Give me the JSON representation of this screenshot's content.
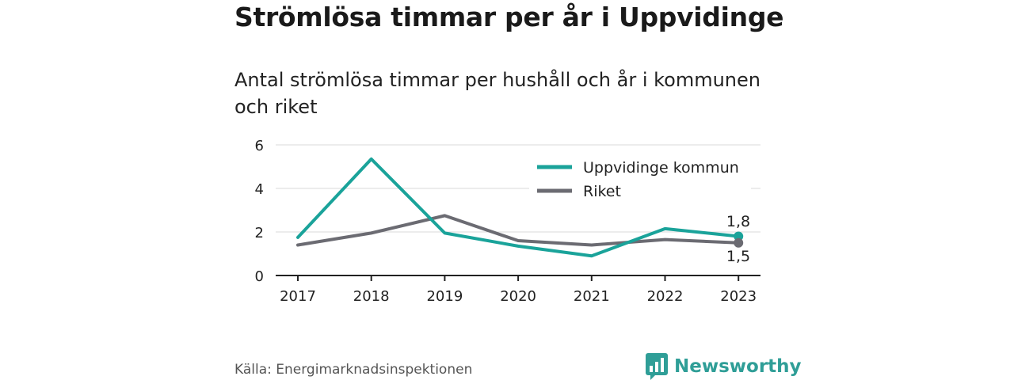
{
  "title": "Strömlösa timmar per år i Uppvidinge",
  "subtitle": "Antal strömlösa timmar per hushåll och år i kommunen och riket",
  "source": "Källa: Energimarknadsinspektionen",
  "brand": "Newsworthy",
  "colors": {
    "teal": "#1aa39a",
    "gray": "#6b6b72",
    "grid": "#d9d9d9",
    "axis": "#222222"
  },
  "chart_data": {
    "type": "line",
    "x": [
      "2017",
      "2018",
      "2019",
      "2020",
      "2021",
      "2022",
      "2023"
    ],
    "ylim": [
      0,
      6
    ],
    "yticks": [
      0,
      2,
      4,
      6
    ],
    "grid": true,
    "legend": "top-right",
    "series": [
      {
        "name": "Uppvidinge kommun",
        "color": "#1aa39a",
        "values": [
          1.75,
          5.35,
          1.95,
          1.35,
          0.9,
          2.15,
          1.8
        ],
        "end_label": "1,8"
      },
      {
        "name": "Riket",
        "color": "#6b6b72",
        "values": [
          1.4,
          1.95,
          2.75,
          1.6,
          1.4,
          1.65,
          1.5
        ],
        "end_label": "1,5"
      }
    ]
  }
}
